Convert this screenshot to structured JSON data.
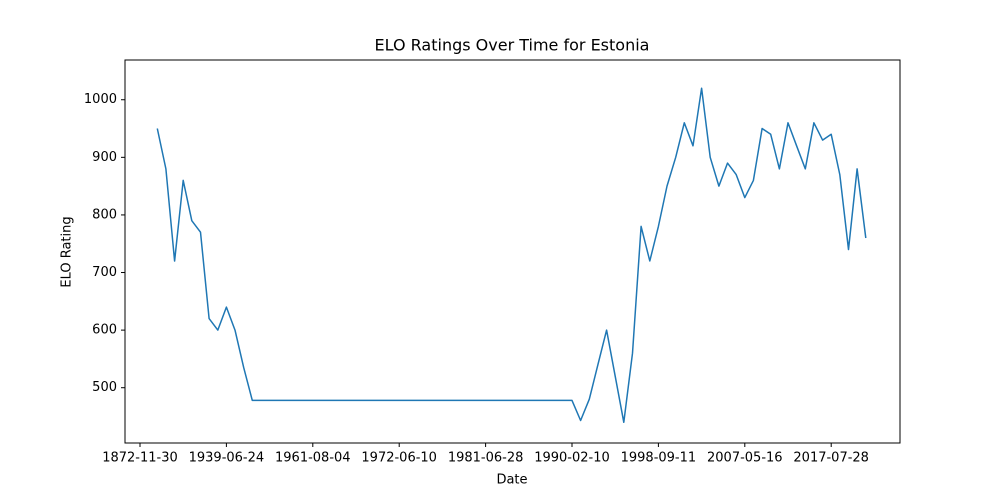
{
  "chart_data": {
    "type": "line",
    "title": "ELO Ratings Over Time for Estonia",
    "xlabel": "Date",
    "ylabel": "ELO Rating",
    "color": "#1f77b4",
    "grid": false,
    "categories": [
      "1872-11-30",
      null,
      null,
      null,
      null,
      null,
      null,
      null,
      null,
      null,
      "1939-06-24",
      null,
      null,
      null,
      null,
      null,
      null,
      null,
      null,
      null,
      "1961-08-04",
      null,
      null,
      null,
      null,
      null,
      null,
      null,
      null,
      null,
      "1972-06-10",
      null,
      null,
      null,
      null,
      null,
      null,
      null,
      null,
      null,
      "1981-06-28",
      null,
      null,
      null,
      null,
      null,
      null,
      null,
      null,
      null,
      "1990-02-10",
      null,
      null,
      null,
      null,
      null,
      null,
      null,
      null,
      null,
      "1998-09-11",
      null,
      null,
      null,
      null,
      null,
      null,
      null,
      null,
      null,
      "2007-05-16",
      null,
      null,
      null,
      null,
      null,
      null,
      null,
      null,
      null,
      "2017-07-28",
      null,
      null,
      null,
      null
    ],
    "values": [
      null,
      null,
      950,
      880,
      720,
      860,
      790,
      770,
      620,
      600,
      640,
      600,
      535,
      478,
      478,
      478,
      478,
      478,
      478,
      478,
      478,
      478,
      478,
      478,
      478,
      478,
      478,
      478,
      478,
      478,
      478,
      478,
      478,
      478,
      478,
      478,
      478,
      478,
      478,
      478,
      478,
      478,
      478,
      478,
      478,
      478,
      478,
      478,
      478,
      478,
      478,
      443,
      480,
      540,
      600,
      520,
      440,
      560,
      780,
      720,
      780,
      850,
      900,
      960,
      920,
      1020,
      900,
      850,
      890,
      870,
      830,
      860,
      950,
      940,
      880,
      960,
      920,
      880,
      960,
      930,
      940,
      870,
      740,
      880,
      760
    ],
    "ylim": [
      404,
      1069
    ],
    "yticks": [
      500,
      600,
      700,
      800,
      900,
      1000
    ]
  }
}
